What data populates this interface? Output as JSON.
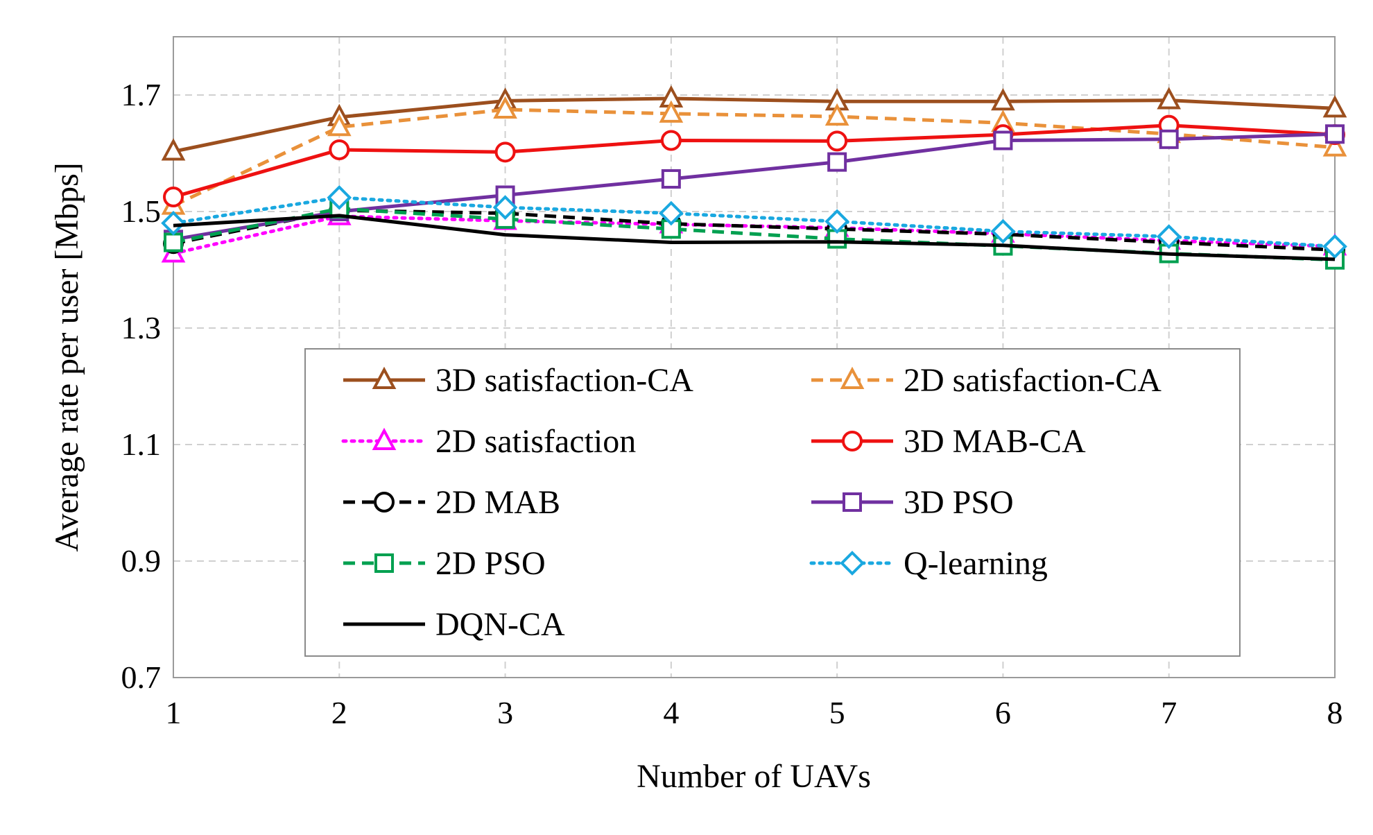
{
  "chart_data": {
    "type": "line",
    "title": "",
    "xlabel": "Number of UAVs",
    "ylabel": "Average rate per user [Mbps]",
    "x": [
      1,
      2,
      3,
      4,
      5,
      6,
      7,
      8
    ],
    "xlim": [
      1,
      8
    ],
    "ylim": [
      0.7,
      1.8
    ],
    "yticks": [
      0.7,
      0.9,
      1.1,
      1.3,
      1.5,
      1.7
    ],
    "ytick_labels": [
      "0.7",
      "0.9",
      "1.1",
      "1.3",
      "1.5",
      "1.7"
    ],
    "xtick_labels": [
      "1",
      "2",
      "3",
      "4",
      "5",
      "6",
      "7",
      "8"
    ],
    "grid": true,
    "legend_position": "bottom-center",
    "series": [
      {
        "name": "3D satisfaction-CA",
        "color": "#9C4F1E",
        "dash": "solid",
        "marker": "triangle",
        "values": [
          1.603,
          1.662,
          1.69,
          1.694,
          1.689,
          1.689,
          1.691,
          1.677
        ]
      },
      {
        "name": "2D satisfaction-CA",
        "color": "#E9913A",
        "dash": "dashed",
        "marker": "triangle",
        "values": [
          1.51,
          1.645,
          1.675,
          1.668,
          1.663,
          1.652,
          1.633,
          1.61
        ]
      },
      {
        "name": "2D satisfaction",
        "color": "#FF00FF",
        "dash": "dotted",
        "marker": "triangle",
        "values": [
          1.428,
          1.492,
          1.484,
          1.478,
          1.472,
          1.462,
          1.45,
          1.44
        ]
      },
      {
        "name": "3D MAB-CA",
        "color": "#EE1111",
        "dash": "solid",
        "marker": "circle",
        "values": [
          1.525,
          1.606,
          1.602,
          1.622,
          1.621,
          1.632,
          1.648,
          1.632
        ]
      },
      {
        "name": "2D MAB",
        "color": "#000000",
        "dash": "dashed",
        "marker": "circle",
        "values": [
          1.445,
          1.502,
          1.497,
          1.479,
          1.47,
          1.461,
          1.447,
          1.434
        ]
      },
      {
        "name": "3D PSO",
        "color": "#7030A0",
        "dash": "solid",
        "marker": "square",
        "values": [
          1.452,
          1.5,
          1.528,
          1.556,
          1.585,
          1.622,
          1.624,
          1.633
        ]
      },
      {
        "name": "2D PSO",
        "color": "#00A050",
        "dash": "dashed",
        "marker": "square",
        "values": [
          1.447,
          1.505,
          1.487,
          1.47,
          1.453,
          1.441,
          1.428,
          1.417
        ]
      },
      {
        "name": "Q-learning",
        "color": "#1AA8E0",
        "dash": "dotted",
        "marker": "diamond",
        "values": [
          1.48,
          1.524,
          1.507,
          1.497,
          1.483,
          1.466,
          1.457,
          1.44
        ]
      },
      {
        "name": "DQN-CA",
        "color": "#000000",
        "dash": "solid",
        "marker": "none",
        "values": [
          1.476,
          1.493,
          1.46,
          1.447,
          1.448,
          1.442,
          1.427,
          1.418
        ]
      }
    ]
  }
}
